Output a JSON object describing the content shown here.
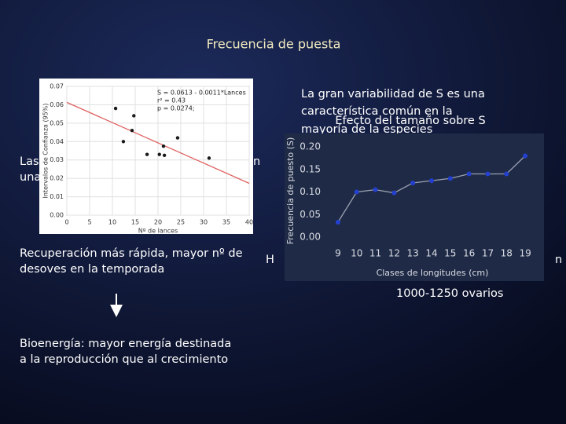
{
  "title": "Frecuencia de puesta",
  "right_text": [
    "La gran variabilidad de S es una",
    "característica común en la",
    "mayoría de la especies"
  ],
  "left_fragments": [
    "Las",
    "n",
    "una"
  ],
  "left_text": [
    "Recuperación más rápida, mayor nº de",
    "desoves en la temporada"
  ],
  "bioenergy_text": [
    "Bioenergía: mayor energía destinada",
    "a la reproducción que al crecimiento"
  ],
  "right_fragments": [
    "H",
    "n"
  ],
  "ovaries": "1000-1250 ovarios",
  "chart_data": [
    {
      "type": "scatter",
      "xlabel": "Nº de lances",
      "ylabel": "Intervalos de Confianza (95%)",
      "annotation": [
        "S = 0.0613 - 0.0011*Lances",
        "r² = 0.43",
        "p = 0.0274;"
      ],
      "x": [
        10.7,
        14.7,
        12.4,
        14.3,
        17.6,
        20.3,
        21.4,
        21.2,
        24.3,
        31.2
      ],
      "y": [
        0.058,
        0.054,
        0.04,
        0.046,
        0.033,
        0.033,
        0.0325,
        0.0375,
        0.042,
        0.031
      ],
      "color": "#1a1a1a",
      "grid": true,
      "fit_line": {
        "x": [
          0,
          40
        ],
        "y": [
          0.0613,
          0.0173
        ],
        "color": "#e06060"
      },
      "xlim": [
        0,
        40
      ],
      "xticks": [
        0,
        5,
        10,
        15,
        20,
        25,
        30,
        35,
        40
      ],
      "ylim": [
        0,
        0.07
      ],
      "yticks": [
        {
          "value": 0,
          "label": "0.00"
        },
        0.01,
        0.02,
        0.03,
        0.04,
        0.05,
        0.06,
        0.07
      ]
    },
    {
      "type": "line",
      "title": "Efecto del tamaño sobre S",
      "xlabel": "Clases de longitudes (cm)",
      "ylabel": "Frecuencia de puesto (S)",
      "categories": [
        "9",
        "10",
        "11",
        "12",
        "13",
        "14",
        "15",
        "16",
        "17",
        "18",
        "19"
      ],
      "values": [
        0.033,
        0.1,
        0.105,
        0.098,
        0.12,
        0.125,
        0.13,
        0.14,
        0.14,
        0.14,
        0.18
      ],
      "color": "#2340d0",
      "line_color": "#9aa0b0",
      "ylim": [
        0,
        0.2
      ],
      "yticks": [
        {
          "value": 0,
          "label": "0.00"
        },
        0.05,
        {
          "value": 0.1,
          "label": "0.10"
        },
        0.15,
        {
          "value": 0.2,
          "label": "0.20"
        }
      ]
    }
  ]
}
